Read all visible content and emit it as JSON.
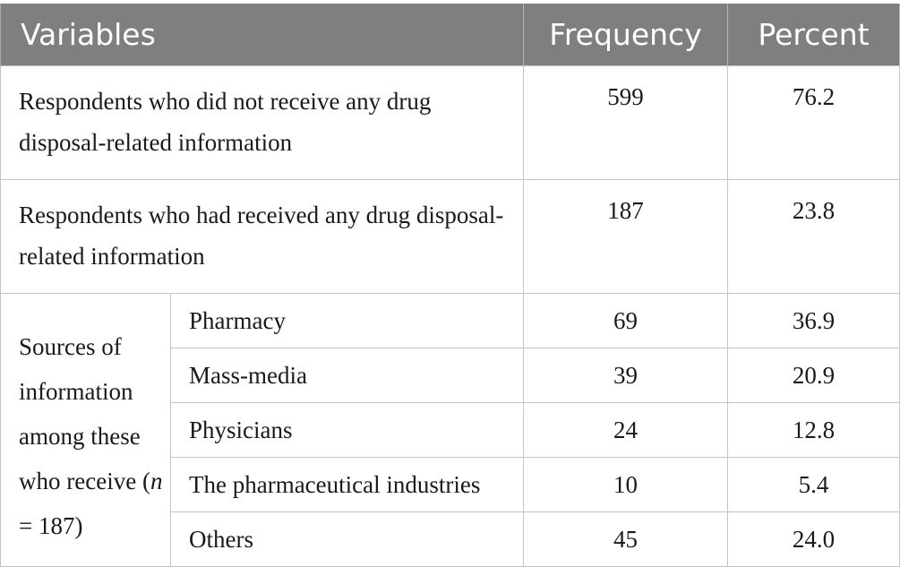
{
  "headers": {
    "variables": "Variables",
    "frequency": "Frequency",
    "percent": "Percent"
  },
  "rows": [
    {
      "label": "Respondents who did not receive any drug disposal-related information",
      "frequency": "599",
      "percent": "76.2"
    },
    {
      "label": "Respondents who had received any drug disposal-related information",
      "frequency": "187",
      "percent": "23.8"
    }
  ],
  "sources": {
    "group_label": "Sources of information among these who receive",
    "n_symbol": "n",
    "n_value": " = 187)",
    "items": [
      {
        "label": "Pharmacy",
        "frequency": "69",
        "percent": "36.9"
      },
      {
        "label": "Mass-media",
        "frequency": "39",
        "percent": "20.9"
      },
      {
        "label": "Physicians",
        "frequency": "24",
        "percent": "12.8"
      },
      {
        "label": "The pharmaceutical industries",
        "frequency": "10",
        "percent": "5.4"
      },
      {
        "label": "Others",
        "frequency": "45",
        "percent": "24.0"
      }
    ]
  }
}
